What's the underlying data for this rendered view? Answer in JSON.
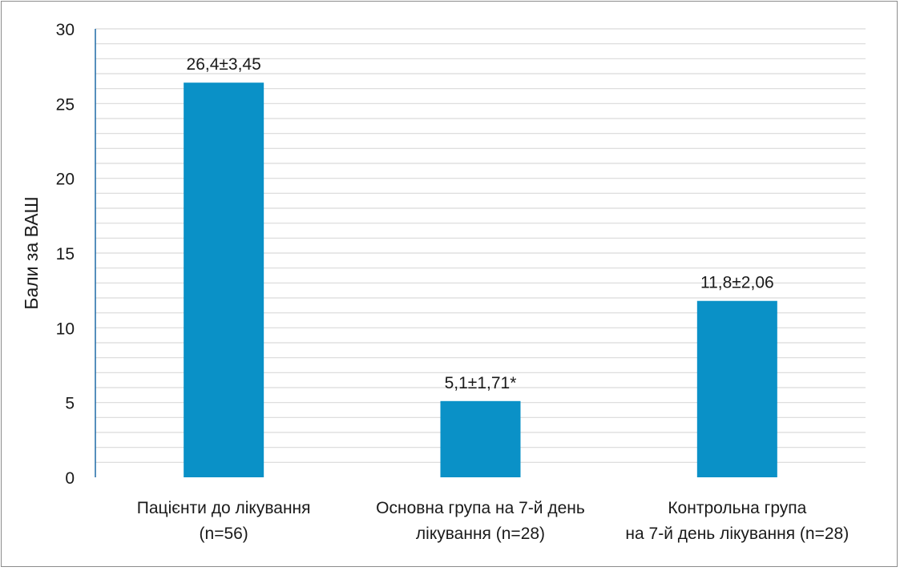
{
  "chart_data": {
    "type": "bar",
    "categories": [
      [
        "Пацієнти до лікування",
        "(n=56)"
      ],
      [
        "Основна група на 7-й день",
        "лікування (n=28)"
      ],
      [
        "Контрольна група",
        "на 7-й день лікування (n=28)"
      ]
    ],
    "values": [
      26.4,
      5.1,
      11.8
    ],
    "data_labels": [
      "26,4±3,45",
      "5,1±1,71*",
      "11,8±2,06"
    ],
    "title": "",
    "xlabel": "",
    "ylabel": "Бали за ВАШ",
    "ylim": [
      0,
      30
    ],
    "yticks": [
      0,
      5,
      10,
      15,
      20,
      25,
      30
    ],
    "grid": true,
    "bar_color": "#0a91c7",
    "axis_color": "#1f6aa5",
    "grid_color": "#d9d9d9"
  }
}
